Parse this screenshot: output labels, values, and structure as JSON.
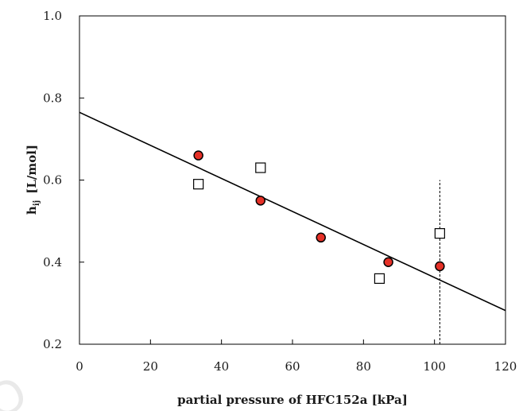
{
  "chart_data": {
    "type": "scatter",
    "title": "",
    "xlabel": "partial pressure of HFC152a [kPa]",
    "ylabel": {
      "main": "h",
      "subscript": "ij",
      "unit": "[L/mol]"
    },
    "xlim": [
      0,
      120
    ],
    "ylim": [
      0.2,
      1.0
    ],
    "xticks": [
      0,
      20,
      40,
      60,
      80,
      100,
      120
    ],
    "xtick_labels": [
      "0",
      "20",
      "40",
      "60",
      "80",
      "100",
      "120"
    ],
    "yticks": [
      0.2,
      0.4,
      0.6,
      0.8,
      1.0
    ],
    "ytick_labels": [
      "0.2",
      "0.4",
      "0.6",
      "0.8",
      "1.0"
    ],
    "grid": false,
    "series": [
      {
        "marker": "circle",
        "color": "#e53027",
        "edge_color": "#000000",
        "points": [
          {
            "x": 33.5,
            "y": 0.66
          },
          {
            "x": 51,
            "y": 0.55
          },
          {
            "x": 68,
            "y": 0.46
          },
          {
            "x": 87,
            "y": 0.4
          },
          {
            "x": 101.5,
            "y": 0.39
          }
        ]
      },
      {
        "marker": "square",
        "color": "#ffffff",
        "edge_color": "#000000",
        "points": [
          {
            "x": 33.5,
            "y": 0.59
          },
          {
            "x": 51,
            "y": 0.63
          },
          {
            "x": 84.5,
            "y": 0.36
          },
          {
            "x": 101.5,
            "y": 0.47
          }
        ]
      }
    ],
    "trend_line": {
      "color": "#000000",
      "x": [
        0,
        120
      ],
      "y": [
        0.765,
        0.282
      ]
    },
    "reference_line": {
      "style": "dashed",
      "color": "#000000",
      "x": 101.5,
      "y": [
        0.2,
        0.6
      ]
    }
  }
}
